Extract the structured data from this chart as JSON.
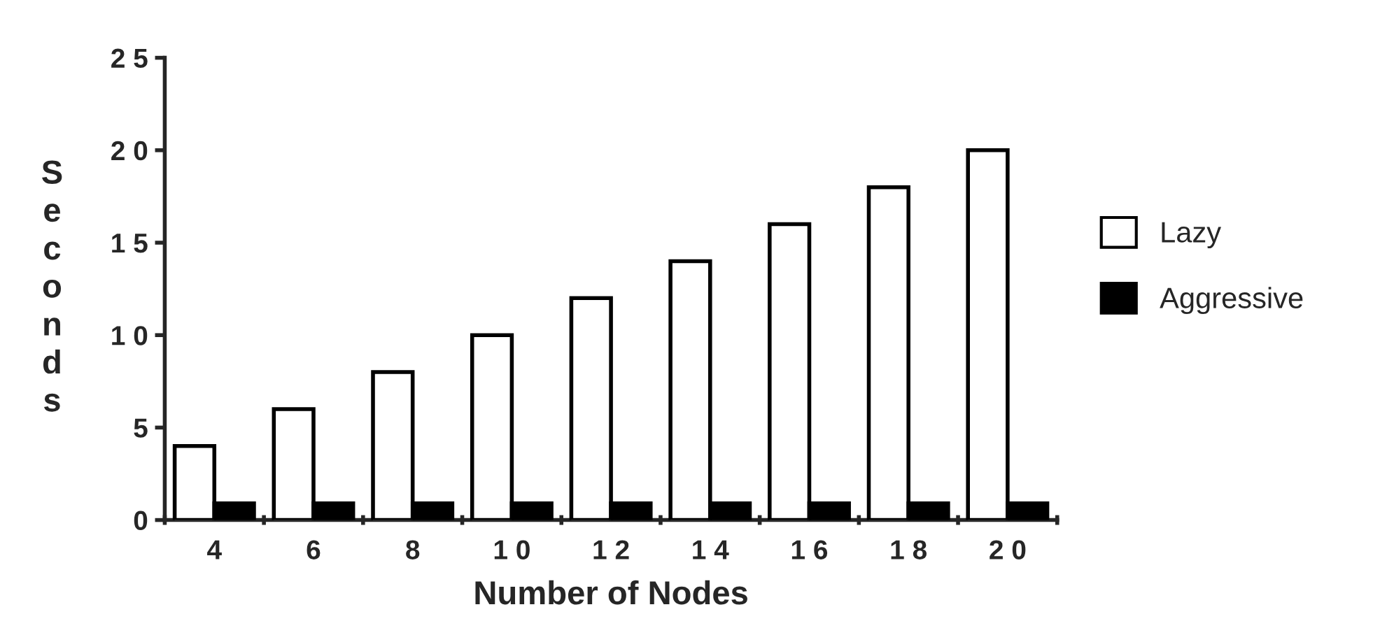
{
  "chart_data": {
    "type": "bar",
    "xlabel": "Number of Nodes",
    "ylabel": "Seconds",
    "categories": [
      "4",
      "6",
      "8",
      "1 0",
      "1 2",
      "1 4",
      "1 6",
      "1 8",
      "2 0"
    ],
    "series": [
      {
        "name": "Lazy",
        "color": "#ffffff",
        "values": [
          4,
          6,
          8,
          10,
          12,
          14,
          16,
          18,
          20
        ]
      },
      {
        "name": "Aggressive",
        "color": "#000000",
        "values": [
          0.9,
          0.9,
          0.9,
          0.9,
          0.9,
          0.9,
          0.9,
          0.9,
          0.9
        ]
      }
    ],
    "ylim": [
      0,
      25
    ],
    "yticks": [
      0,
      5,
      {
        "value": 10,
        "label": "1 0"
      },
      {
        "value": 15,
        "label": "1 5"
      },
      {
        "value": 20,
        "label": "2 0"
      },
      {
        "value": 25,
        "label": "2 5"
      }
    ],
    "legend": "right",
    "grid": false
  }
}
